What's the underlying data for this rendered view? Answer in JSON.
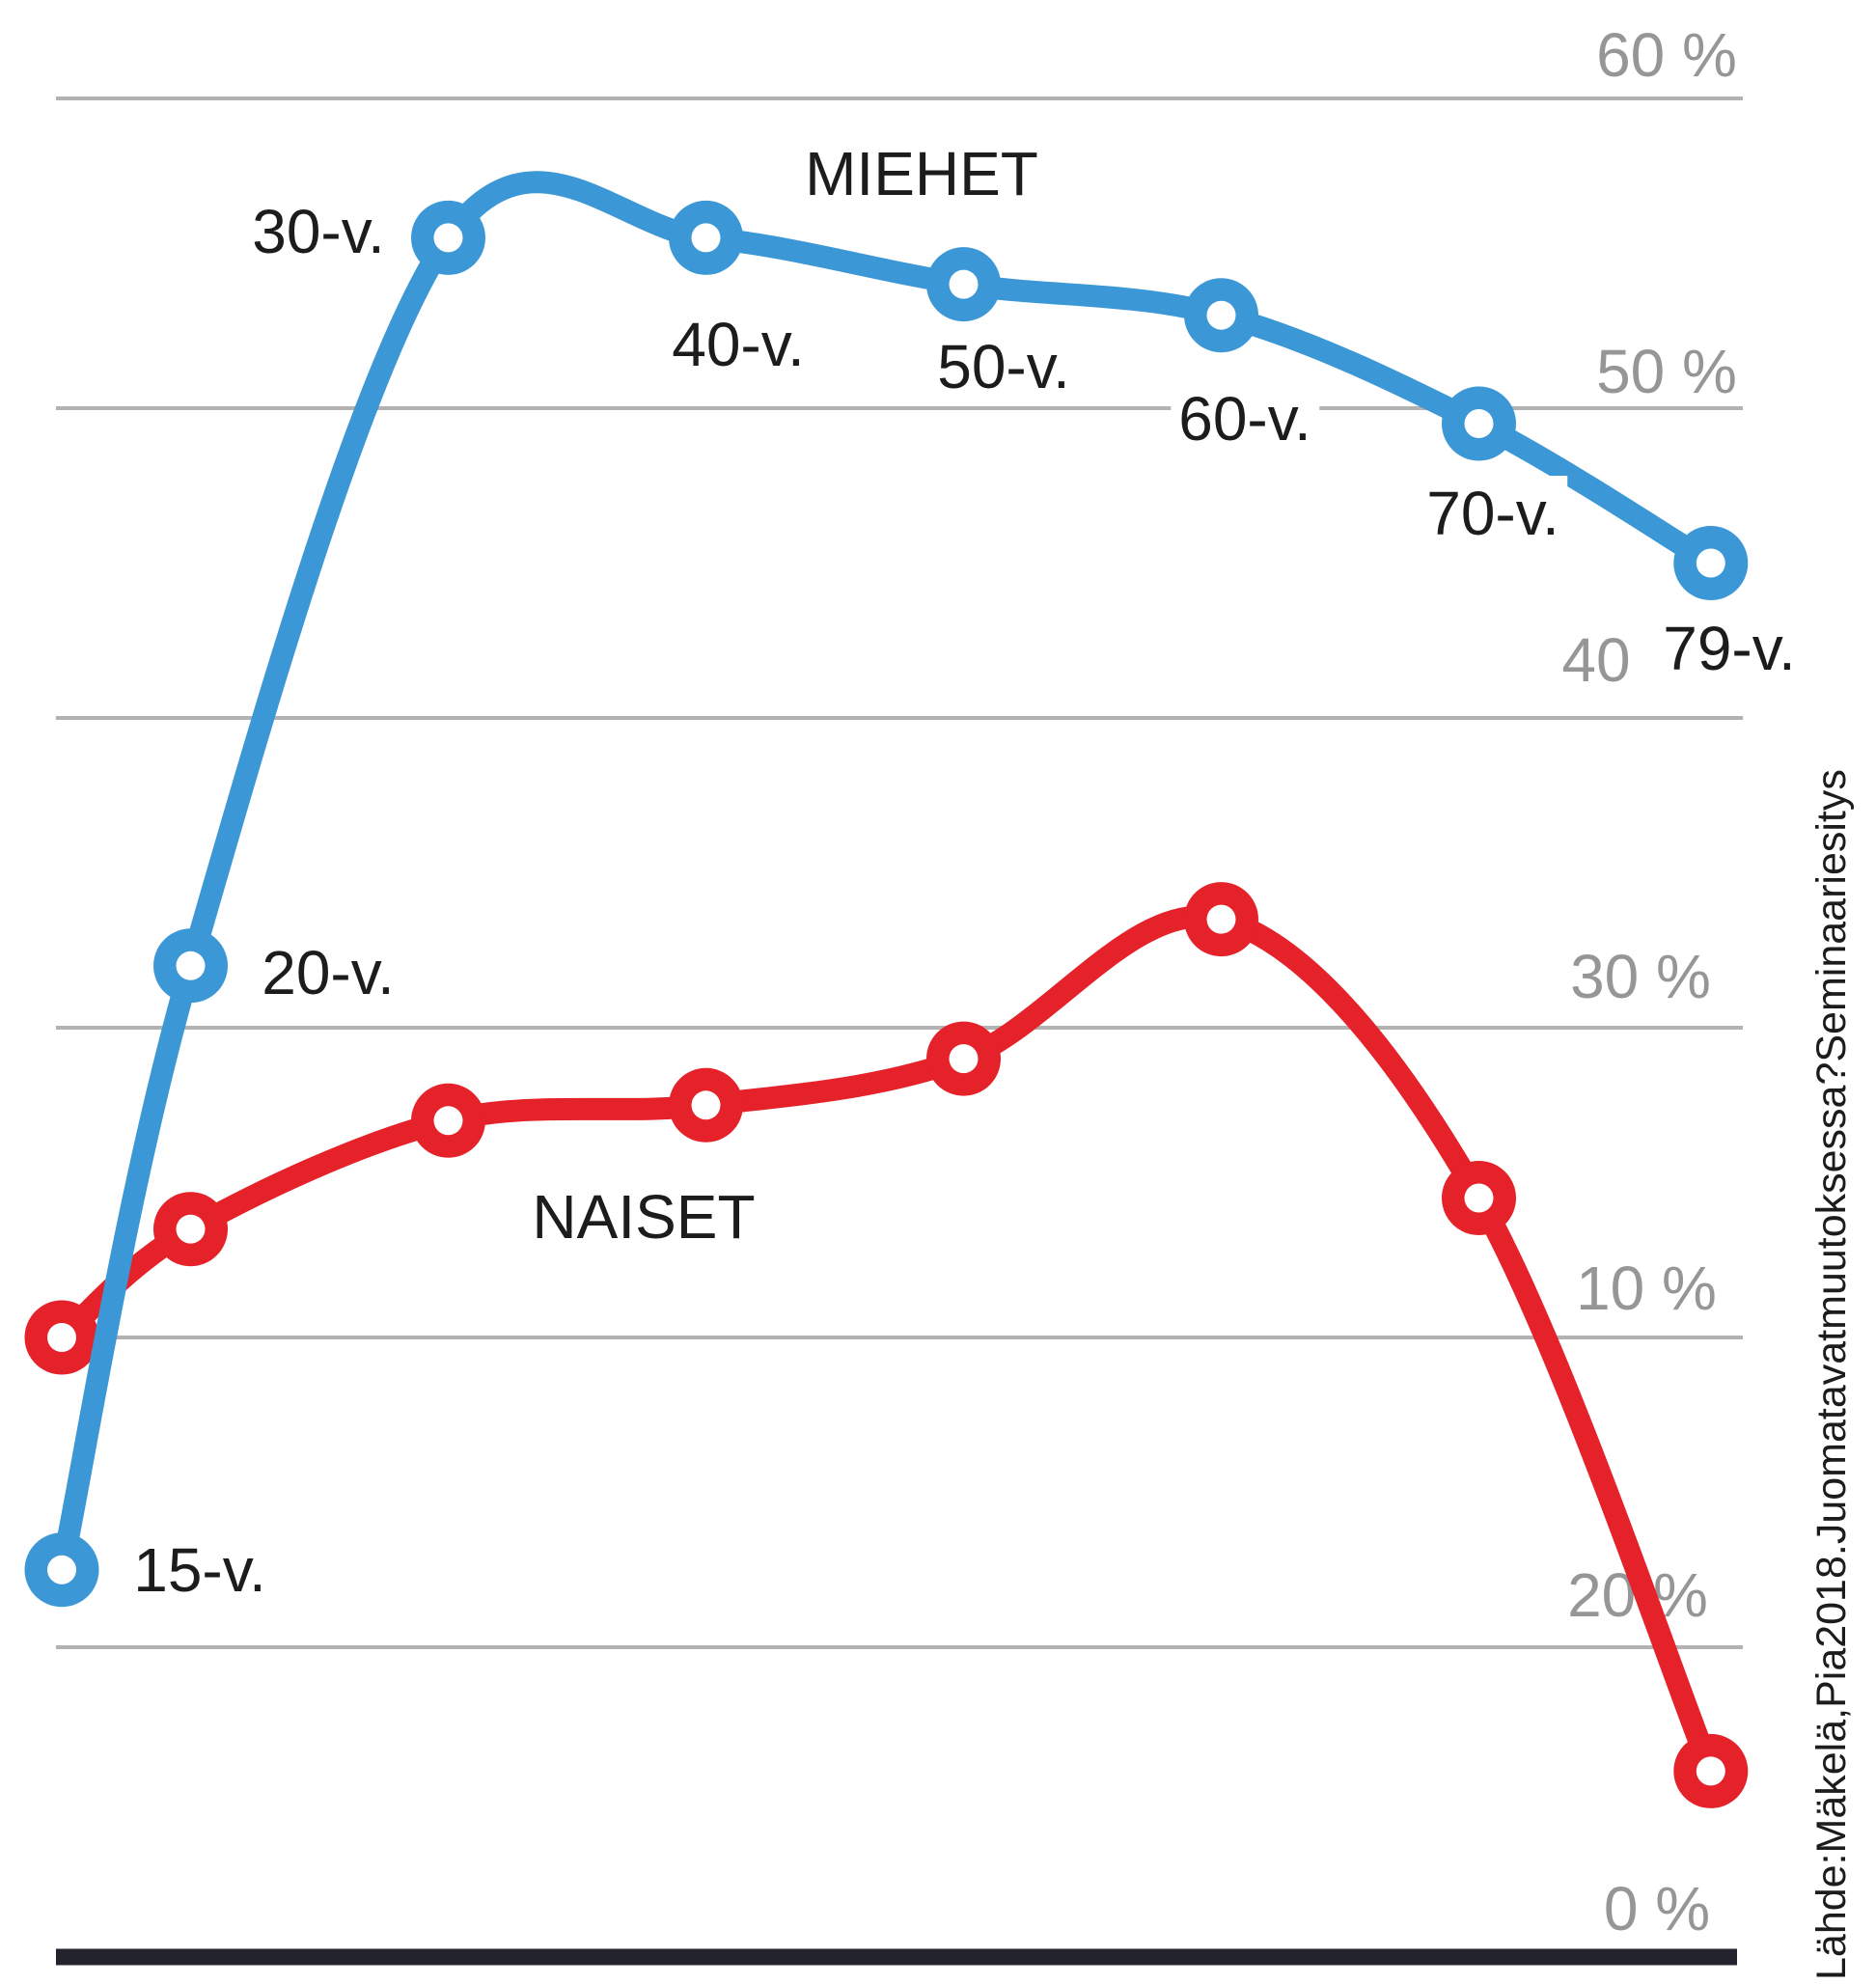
{
  "chart_data": {
    "type": "line",
    "x_axis": "age (years)",
    "x": [
      15,
      20,
      30,
      40,
      50,
      60,
      70,
      79
    ],
    "x_tick_labels": [
      "15-v.",
      "20-v.",
      "30-v.",
      "40-v.",
      "50-v.",
      "60-v.",
      "70-v.",
      "79-v."
    ],
    "series": [
      {
        "name": "MIEHET",
        "color": "#3b97d5",
        "values": [
          12.5,
          32,
          55.5,
          55.5,
          54,
          53,
          49.5,
          45
        ]
      },
      {
        "name": "NAISET",
        "color": "#e5212a",
        "values": [
          20,
          23.5,
          27,
          27.5,
          29,
          33.5,
          24.5,
          6
        ]
      }
    ],
    "ylim": [
      0,
      63
    ],
    "grid_values": [
      60,
      50,
      40,
      30,
      20,
      10
    ],
    "y_tick_labels_displayed": [
      "60 %",
      "50 %",
      "40",
      "30 %",
      "10 %",
      "20 %",
      "0 %"
    ],
    "grid": true,
    "legend_position": "inline-labels",
    "source": "Lähde:Mäkelä,Pia2018.Juomatavatmuutoksessa?Seminaariesitys"
  },
  "colors": {
    "men_line": "#3b97d5",
    "women_line": "#e5212a",
    "gridline": "#b2b2b2",
    "axis_line": "#23232d",
    "tick_text": "#969696",
    "label_text": "#1c1c1c",
    "background": "#ffffff"
  }
}
